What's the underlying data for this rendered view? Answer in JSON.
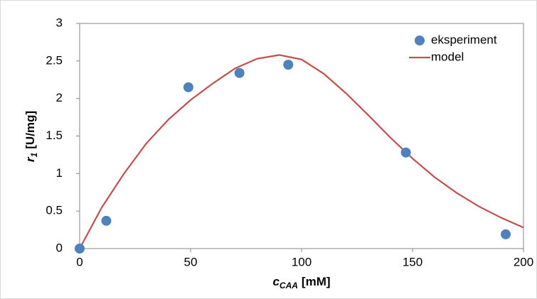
{
  "chart_data": {
    "type": "scatter",
    "xlabel": {
      "var": "c",
      "sub": "CAA",
      "unit": "[mM]"
    },
    "ylabel": {
      "var": "r",
      "sub": "1",
      "unit": "[U/mg]"
    },
    "xlim": [
      0,
      200
    ],
    "xticks": [
      0,
      50,
      100,
      150,
      200
    ],
    "ylim": [
      0,
      3
    ],
    "yticks": [
      0,
      0.5,
      1,
      1.5,
      2,
      2.5,
      3
    ],
    "grid": false,
    "legend": "upper right",
    "series": [
      {
        "name": "eksperiment",
        "type": "scatter",
        "color": "#4f81bd",
        "x": [
          0,
          12,
          49,
          72,
          94,
          147,
          192
        ],
        "values": [
          0,
          0.37,
          2.15,
          2.34,
          2.45,
          1.28,
          0.19
        ]
      },
      {
        "name": "model",
        "type": "line",
        "color": "#c0504d",
        "x": [
          0,
          10,
          20,
          30,
          40,
          50,
          60,
          70,
          80,
          90,
          100,
          110,
          120,
          130,
          140,
          150,
          160,
          170,
          180,
          190,
          200
        ],
        "values": [
          0,
          0.55,
          1.0,
          1.4,
          1.72,
          1.98,
          2.2,
          2.4,
          2.53,
          2.58,
          2.52,
          2.33,
          2.07,
          1.78,
          1.48,
          1.2,
          0.95,
          0.74,
          0.56,
          0.41,
          0.28
        ]
      }
    ]
  }
}
